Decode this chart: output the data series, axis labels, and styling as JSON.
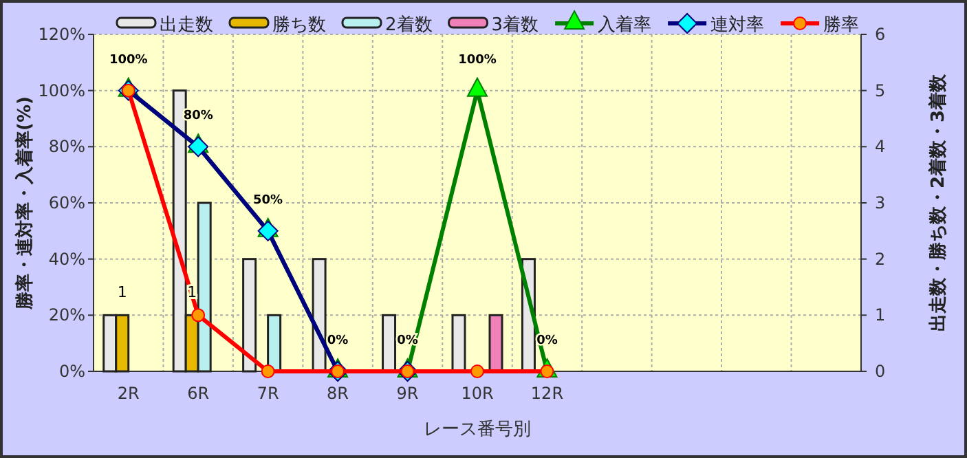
{
  "chart_data": {
    "type": "bar",
    "categories": [
      "2R",
      "6R",
      "7R",
      "8R",
      "9R",
      "10R",
      "12R",
      null,
      null,
      null,
      null
    ],
    "xlabel": "レース番号別",
    "ylabel": "勝率・連対率・入着率(%)",
    "y2label": "出走数・勝ち数・2着数・3着数",
    "ylim": [
      0,
      120
    ],
    "yticks": [
      {
        "value": 0,
        "label": "0%"
      },
      {
        "value": 20,
        "label": "20%"
      },
      {
        "value": 40,
        "label": "40%"
      },
      {
        "value": 60,
        "label": "60%"
      },
      {
        "value": 80,
        "label": "80%"
      },
      {
        "value": 100,
        "label": "100%"
      },
      {
        "value": 120,
        "label": "120%"
      }
    ],
    "y2lim": [
      0,
      6
    ],
    "y2ticks": [
      0,
      1,
      2,
      3,
      4,
      5,
      6
    ],
    "grid": true,
    "legend": "top",
    "series": [
      {
        "name": "出走数",
        "axis": "y2",
        "color": "#e8e8e8",
        "values": [
          1,
          5,
          2,
          2,
          1,
          1,
          2,
          null,
          null,
          null,
          null
        ]
      },
      {
        "name": "勝ち数",
        "axis": "y2",
        "color": "#e6b800",
        "values": [
          1,
          1,
          0,
          0,
          0,
          0,
          0,
          null,
          null,
          null,
          null
        ],
        "value_labels": [
          "1",
          "1",
          null,
          null,
          null,
          null,
          null,
          null,
          null,
          null,
          null
        ]
      },
      {
        "name": "2着数",
        "axis": "y2",
        "color": "#b8f0f0",
        "values": [
          0,
          3,
          1,
          0,
          0,
          0,
          0,
          null,
          null,
          null,
          null
        ]
      },
      {
        "name": "3着数",
        "axis": "y2",
        "color": "#f080b8",
        "values": [
          0,
          0,
          0,
          0,
          0,
          1,
          0,
          null,
          null,
          null,
          null
        ]
      },
      {
        "name": "入着率",
        "type": "line",
        "color": "#008000",
        "marker": "triangle",
        "values": [
          100,
          80,
          50,
          0,
          0,
          100,
          0,
          null,
          null,
          null,
          null
        ],
        "value_labels": [
          "100%",
          "80%",
          "50%",
          "0%",
          "0%",
          "100%",
          "0%",
          null,
          null,
          null,
          null
        ]
      },
      {
        "name": "連対率",
        "type": "line",
        "color": "#000080",
        "marker": "diamond",
        "values": [
          100,
          80,
          50,
          0,
          0,
          null,
          null,
          null,
          null,
          null,
          null
        ]
      },
      {
        "name": "勝率",
        "type": "line",
        "color": "#ff0000",
        "marker": "circle",
        "values": [
          100,
          20,
          0,
          0,
          0,
          0,
          0,
          null,
          null,
          null,
          null
        ]
      }
    ]
  }
}
